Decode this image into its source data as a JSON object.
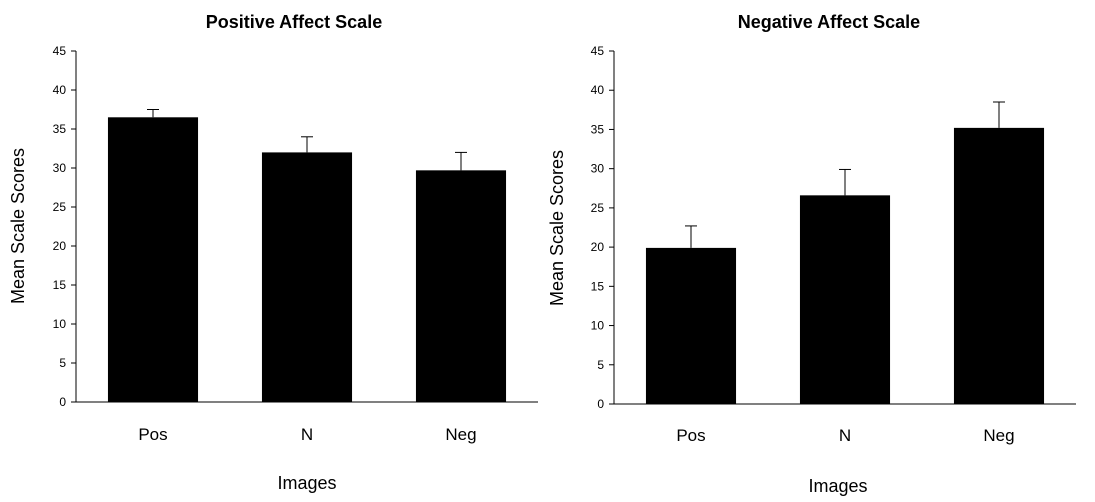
{
  "chart_data": [
    {
      "type": "bar",
      "title": "Positive Affect Scale",
      "xlabel": "Images",
      "ylabel": "Mean Scale Scores",
      "categories": [
        "Pos",
        "N",
        "Neg"
      ],
      "values": [
        36.5,
        32.0,
        29.7
      ],
      "error_bars": [
        1.0,
        2.0,
        2.3
      ],
      "ylim": [
        0,
        45
      ],
      "yticks": [
        0,
        5,
        10,
        15,
        20,
        25,
        30,
        35,
        40,
        45
      ],
      "bar_color": "#000000",
      "grid": false,
      "legend": "none"
    },
    {
      "type": "bar",
      "title": "Negative Affect Scale",
      "xlabel": "Images",
      "ylabel": "Mean Scale Scores",
      "categories": [
        "Pos",
        "N",
        "Neg"
      ],
      "values": [
        19.9,
        26.6,
        35.2
      ],
      "error_bars": [
        2.8,
        3.3,
        3.3
      ],
      "ylim": [
        0,
        45
      ],
      "yticks": [
        0,
        5,
        10,
        15,
        20,
        25,
        30,
        35,
        40,
        45
      ],
      "bar_color": "#000000",
      "grid": false,
      "legend": "none"
    }
  ]
}
